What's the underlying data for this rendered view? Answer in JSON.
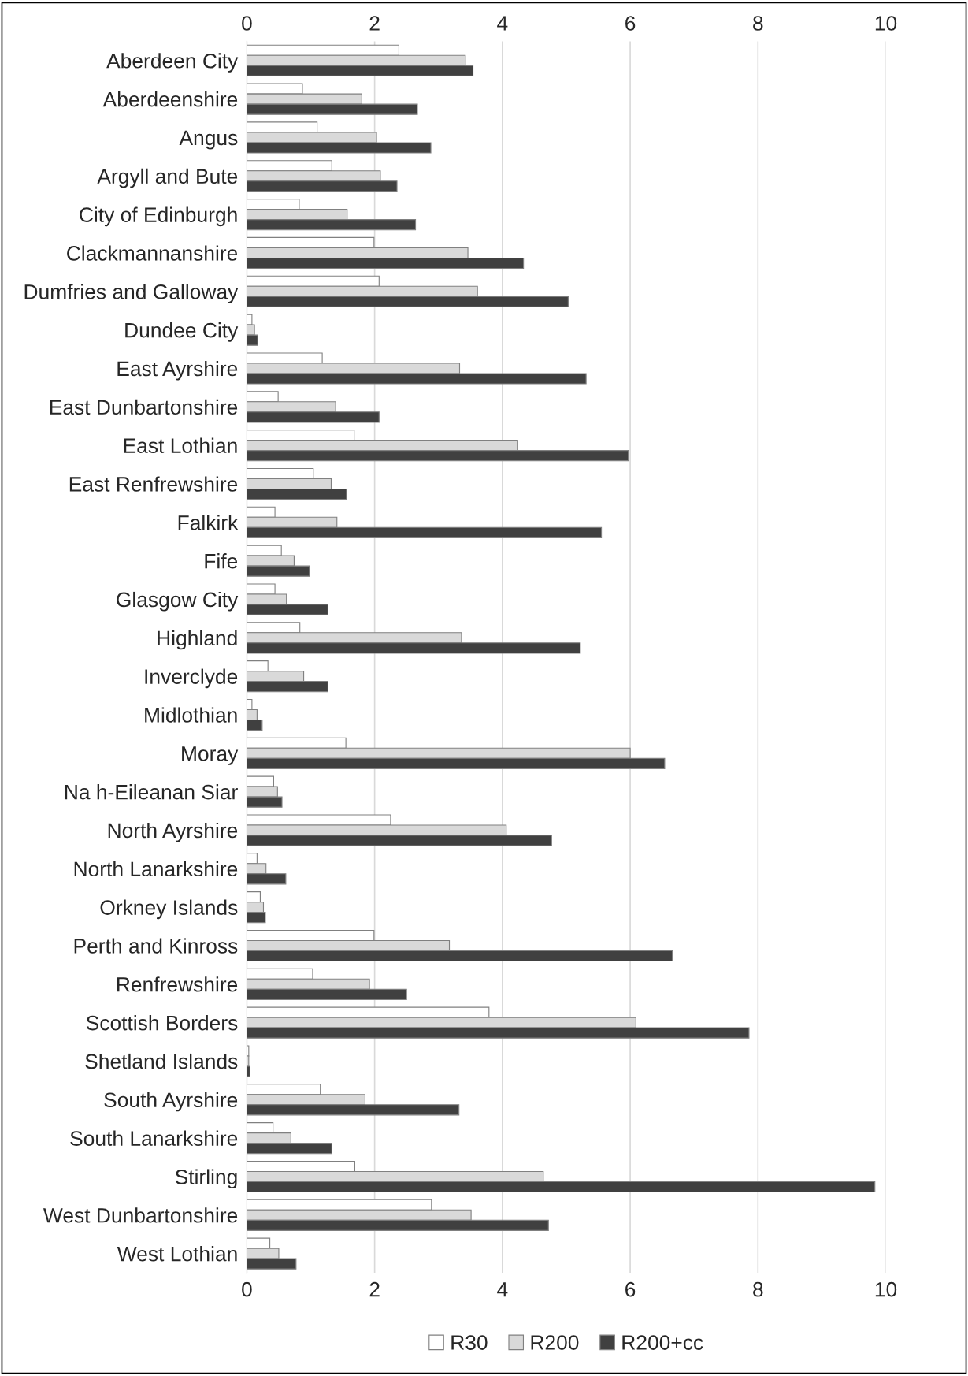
{
  "chart_data": {
    "type": "bar",
    "orientation": "horizontal",
    "categories": [
      "Aberdeen City",
      "Aberdeenshire",
      "Angus",
      "Argyll and Bute",
      "City of Edinburgh",
      "Clackmannanshire",
      "Dumfries and Galloway",
      "Dundee City",
      "East Ayrshire",
      "East Dunbartonshire",
      "East Lothian",
      "East Renfrewshire",
      "Falkirk",
      "Fife",
      "Glasgow City",
      "Highland",
      "Inverclyde",
      "Midlothian",
      "Moray",
      "Na h-Eileanan Siar",
      "North Ayrshire",
      "North Lanarkshire",
      "Orkney Islands",
      "Perth and Kinross",
      "Renfrewshire",
      "Scottish Borders",
      "Shetland Islands",
      "South Ayrshire",
      "South Lanarkshire",
      "Stirling",
      "West Dunbartonshire",
      "West Lothian"
    ],
    "series": [
      {
        "name": "R30",
        "color": "#ffffff",
        "values": [
          2.38,
          0.87,
          1.1,
          1.33,
          0.82,
          1.99,
          2.07,
          0.08,
          1.18,
          0.49,
          1.68,
          1.04,
          0.44,
          0.54,
          0.44,
          0.83,
          0.33,
          0.08,
          1.55,
          0.42,
          2.25,
          0.16,
          0.21,
          1.99,
          1.03,
          3.79,
          0.03,
          1.15,
          0.41,
          1.69,
          2.89,
          0.36
        ]
      },
      {
        "name": "R200",
        "color": "#d9d9d9",
        "values": [
          3.42,
          1.8,
          2.03,
          2.09,
          1.57,
          3.46,
          3.61,
          0.12,
          3.33,
          1.39,
          4.24,
          1.32,
          1.41,
          0.74,
          0.62,
          3.36,
          0.89,
          0.16,
          6.0,
          0.48,
          4.06,
          0.3,
          0.26,
          3.17,
          1.92,
          6.09,
          0.03,
          1.85,
          0.69,
          4.64,
          3.51,
          0.5
        ]
      },
      {
        "name": "R200+cc",
        "color": "#404040",
        "values": [
          3.54,
          2.67,
          2.88,
          2.35,
          2.64,
          4.33,
          5.03,
          0.17,
          5.31,
          2.07,
          5.97,
          1.56,
          5.55,
          0.98,
          1.27,
          5.22,
          1.27,
          0.24,
          6.54,
          0.55,
          4.77,
          0.61,
          0.29,
          6.66,
          2.5,
          7.86,
          0.05,
          3.32,
          1.33,
          9.83,
          4.72,
          0.77
        ]
      }
    ],
    "xlim": [
      0,
      10
    ],
    "xticks": [
      0,
      2,
      4,
      6,
      8,
      10
    ],
    "x2lim": [
      0,
      10
    ],
    "x2ticks": [
      0,
      2,
      4,
      6,
      8,
      10
    ],
    "grid": "x",
    "legend": "bottom"
  }
}
